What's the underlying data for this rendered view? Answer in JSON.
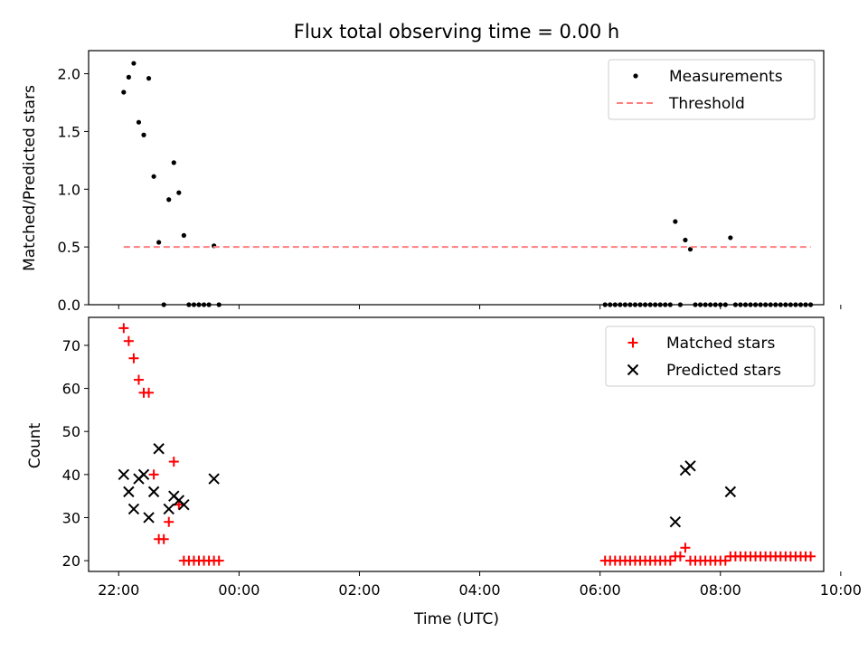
{
  "title": "Flux total observing time = 0.00 h",
  "chart_data": [
    {
      "type": "scatter",
      "ylabel": "Matched/Predicted stars",
      "xlabel": "",
      "xlim": [
        "21:30",
        "31:10"
      ],
      "ylim": [
        0,
        2.2
      ],
      "yticks": [
        0.0,
        0.5,
        1.0,
        1.5,
        2.0
      ],
      "ytick_labels": [
        "0.0",
        "0.5",
        "1.0",
        "1.5",
        "2.0"
      ],
      "legend_position": "upper right",
      "legend": [
        "Measurements",
        "Threshold"
      ],
      "series": [
        {
          "name": "Measurements",
          "marker": "dot",
          "color": "#000000",
          "points": [
            [
              "22:05",
              1.84
            ],
            [
              "22:10",
              1.97
            ],
            [
              "22:15",
              2.09
            ],
            [
              "22:20",
              1.58
            ],
            [
              "22:25",
              1.47
            ],
            [
              "22:30",
              1.96
            ],
            [
              "22:35",
              1.11
            ],
            [
              "22:40",
              0.54
            ],
            [
              "22:45",
              0.0
            ],
            [
              "22:50",
              0.91
            ],
            [
              "22:55",
              1.23
            ],
            [
              "23:00",
              0.97
            ],
            [
              "23:05",
              0.6
            ],
            [
              "23:10",
              0.0
            ],
            [
              "23:15",
              0.0
            ],
            [
              "23:20",
              0.0
            ],
            [
              "23:25",
              0.0
            ],
            [
              "23:30",
              0.0
            ],
            [
              "23:35",
              0.51
            ],
            [
              "23:40",
              0.0
            ],
            [
              "30:05",
              0.0
            ],
            [
              "30:10",
              0.0
            ],
            [
              "30:15",
              0.0
            ],
            [
              "30:20",
              0.0
            ],
            [
              "30:25",
              0.0
            ],
            [
              "30:30",
              0.0
            ],
            [
              "30:35",
              0.0
            ],
            [
              "30:40",
              0.0
            ],
            [
              "30:45",
              0.0
            ],
            [
              "30:50",
              0.0
            ],
            [
              "30:55",
              0.0
            ],
            [
              "31:00",
              0.0
            ],
            [
              "31:05",
              0.0
            ],
            [
              "31:10",
              0.0
            ],
            [
              "31:15",
              0.72
            ],
            [
              "31:20",
              0.0
            ],
            [
              "31:25",
              0.56
            ],
            [
              "31:30",
              0.48
            ],
            [
              "31:35",
              0.0
            ],
            [
              "31:40",
              0.0
            ],
            [
              "31:45",
              0.0
            ],
            [
              "31:50",
              0.0
            ],
            [
              "31:55",
              0.0
            ],
            [
              "32:00",
              0.0
            ],
            [
              "32:05",
              0.0
            ],
            [
              "32:10",
              0.58
            ],
            [
              "32:15",
              0.0
            ],
            [
              "32:20",
              0.0
            ],
            [
              "32:25",
              0.0
            ],
            [
              "32:30",
              0.0
            ],
            [
              "32:35",
              0.0
            ],
            [
              "32:40",
              0.0
            ],
            [
              "32:45",
              0.0
            ],
            [
              "32:50",
              0.0
            ],
            [
              "32:55",
              0.0
            ],
            [
              "33:00",
              0.0
            ],
            [
              "33:05",
              0.0
            ],
            [
              "33:10",
              0.0
            ],
            [
              "33:15",
              0.0
            ],
            [
              "33:20",
              0.0
            ],
            [
              "33:25",
              0.0
            ],
            [
              "33:30",
              0.0
            ]
          ]
        },
        {
          "name": "Threshold",
          "style": "dashed",
          "color": "#ff7f7f",
          "points": [
            [
              "22:05",
              0.5
            ],
            [
              "33:30",
              0.5
            ]
          ]
        }
      ]
    },
    {
      "type": "scatter",
      "ylabel": "Count",
      "xlabel": "Time (UTC)",
      "ylim": [
        17.5,
        76.5
      ],
      "yticks": [
        20,
        30,
        40,
        50,
        60,
        70
      ],
      "ytick_labels": [
        "20",
        "30",
        "40",
        "50",
        "60",
        "70"
      ],
      "xticks": [
        "22:00",
        "00:00",
        "02:00",
        "04:00",
        "06:00",
        "08:00",
        "10:00"
      ],
      "legend_position": "upper right",
      "legend": [
        "Matched stars",
        "Predicted stars"
      ],
      "series": [
        {
          "name": "Matched stars",
          "marker": "plus",
          "color": "#ff0000",
          "points": [
            [
              "22:05",
              74
            ],
            [
              "22:10",
              71
            ],
            [
              "22:15",
              67
            ],
            [
              "22:20",
              62
            ],
            [
              "22:25",
              59
            ],
            [
              "22:30",
              59
            ],
            [
              "22:35",
              40
            ],
            [
              "22:40",
              25
            ],
            [
              "22:45",
              25
            ],
            [
              "22:50",
              29
            ],
            [
              "22:55",
              43
            ],
            [
              "23:00",
              33
            ],
            [
              "23:05",
              20
            ],
            [
              "23:10",
              20
            ],
            [
              "23:15",
              20
            ],
            [
              "23:20",
              20
            ],
            [
              "23:25",
              20
            ],
            [
              "23:30",
              20
            ],
            [
              "23:35",
              20
            ],
            [
              "23:40",
              20
            ],
            [
              "30:05",
              20
            ],
            [
              "30:10",
              20
            ],
            [
              "30:15",
              20
            ],
            [
              "30:20",
              20
            ],
            [
              "30:25",
              20
            ],
            [
              "30:30",
              20
            ],
            [
              "30:35",
              20
            ],
            [
              "30:40",
              20
            ],
            [
              "30:45",
              20
            ],
            [
              "30:50",
              20
            ],
            [
              "30:55",
              20
            ],
            [
              "31:00",
              20
            ],
            [
              "31:05",
              20
            ],
            [
              "31:10",
              20
            ],
            [
              "31:15",
              21
            ],
            [
              "31:20",
              21
            ],
            [
              "31:25",
              23
            ],
            [
              "31:30",
              20
            ],
            [
              "31:35",
              20
            ],
            [
              "31:40",
              20
            ],
            [
              "31:45",
              20
            ],
            [
              "31:50",
              20
            ],
            [
              "31:55",
              20
            ],
            [
              "32:00",
              20
            ],
            [
              "32:05",
              20
            ],
            [
              "32:10",
              21
            ],
            [
              "32:15",
              21
            ],
            [
              "32:20",
              21
            ],
            [
              "32:25",
              21
            ],
            [
              "32:30",
              21
            ],
            [
              "32:35",
              21
            ],
            [
              "32:40",
              21
            ],
            [
              "32:45",
              21
            ],
            [
              "32:50",
              21
            ],
            [
              "32:55",
              21
            ],
            [
              "33:00",
              21
            ],
            [
              "33:05",
              21
            ],
            [
              "33:10",
              21
            ],
            [
              "33:15",
              21
            ],
            [
              "33:20",
              21
            ],
            [
              "33:25",
              21
            ],
            [
              "33:30",
              21
            ]
          ]
        },
        {
          "name": "Predicted stars",
          "marker": "x",
          "color": "#000000",
          "points": [
            [
              "22:05",
              40
            ],
            [
              "22:10",
              36
            ],
            [
              "22:15",
              32
            ],
            [
              "22:20",
              39
            ],
            [
              "22:25",
              40
            ],
            [
              "22:30",
              30
            ],
            [
              "22:35",
              36
            ],
            [
              "22:40",
              46
            ],
            [
              "22:50",
              32
            ],
            [
              "22:55",
              35
            ],
            [
              "23:00",
              34
            ],
            [
              "23:05",
              33
            ],
            [
              "23:35",
              39
            ],
            [
              "31:15",
              29
            ],
            [
              "31:25",
              41
            ],
            [
              "31:30",
              42
            ],
            [
              "32:10",
              36
            ]
          ]
        }
      ]
    }
  ]
}
